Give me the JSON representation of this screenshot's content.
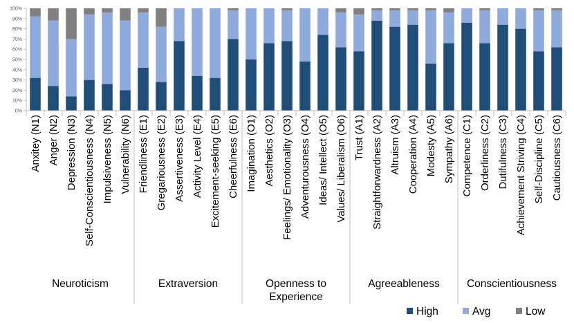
{
  "chart_data": {
    "type": "bar",
    "stacked": true,
    "normalized": true,
    "title": "",
    "xlabel": "",
    "ylabel": "",
    "ylim": [
      0,
      100
    ],
    "yticks": [
      "0%",
      "10%",
      "20%",
      "30%",
      "40%",
      "50%",
      "60%",
      "70%",
      "80%",
      "90%",
      "100%"
    ],
    "categories": [
      "Anxitey (N1)",
      "Anger (N2)",
      "Depression (N3)",
      "Self-Conscientiousness (N4)",
      "Impulsiveness (N5)",
      "Vulnerability (N6)",
      "Friendliness (E1)",
      "Gregariousness (E2)",
      "Assertiveness (E3)",
      "Activity Level (E4)",
      "Excitement-seeking (E5)",
      "Cheerfulness (E6)",
      "Imagination (O1)",
      "Aesthetics (O2)",
      "Feelings/ Emotionality (O3)",
      "Adventurousness (O4)",
      "Ideas/ Intellect (O5)",
      "Values/ Liberalism (O6)",
      "Trust (A1)",
      "Straightforwardness (A2)",
      "Altruism (A3)",
      "Cooperation (A4)",
      "Modesty (A5)",
      "Sympathy (A6)",
      "Competence (C1)",
      "Orderliness (C2)",
      "Dutifulness (C3)",
      "Achievement Striving (C4)",
      "Self-Discipline (C5)",
      "Cautiousness (C6)"
    ],
    "groups": [
      {
        "label": "Neuroticism",
        "count": 6
      },
      {
        "label": "Extraversion",
        "count": 6
      },
      {
        "label": "Openness to Experience",
        "label_lines": [
          "Openness to",
          "Experience"
        ],
        "count": 6
      },
      {
        "label": "Agreeableness",
        "count": 6
      },
      {
        "label": "Conscientiousness",
        "count": 6
      }
    ],
    "series": [
      {
        "name": "High",
        "color": "#1f4e79",
        "values": [
          32,
          24,
          14,
          30,
          26,
          20,
          42,
          28,
          68,
          34,
          32,
          70,
          50,
          66,
          68,
          48,
          74,
          62,
          58,
          88,
          82,
          84,
          46,
          66,
          86,
          66,
          84,
          80,
          58,
          62
        ]
      },
      {
        "name": "Avg",
        "color": "#8faadc",
        "values": [
          60,
          64,
          56,
          64,
          70,
          68,
          54,
          54,
          32,
          66,
          68,
          28,
          50,
          34,
          30,
          52,
          26,
          34,
          36,
          10,
          16,
          14,
          52,
          30,
          14,
          32,
          16,
          20,
          40,
          36
        ]
      },
      {
        "name": "Low",
        "color": "#808080",
        "values": [
          8,
          12,
          30,
          6,
          4,
          12,
          4,
          18,
          0,
          0,
          0,
          2,
          0,
          0,
          2,
          0,
          0,
          4,
          6,
          2,
          2,
          2,
          2,
          4,
          0,
          2,
          0,
          0,
          2,
          2
        ]
      }
    ],
    "legend_position": "bottom-right",
    "grid": false
  }
}
